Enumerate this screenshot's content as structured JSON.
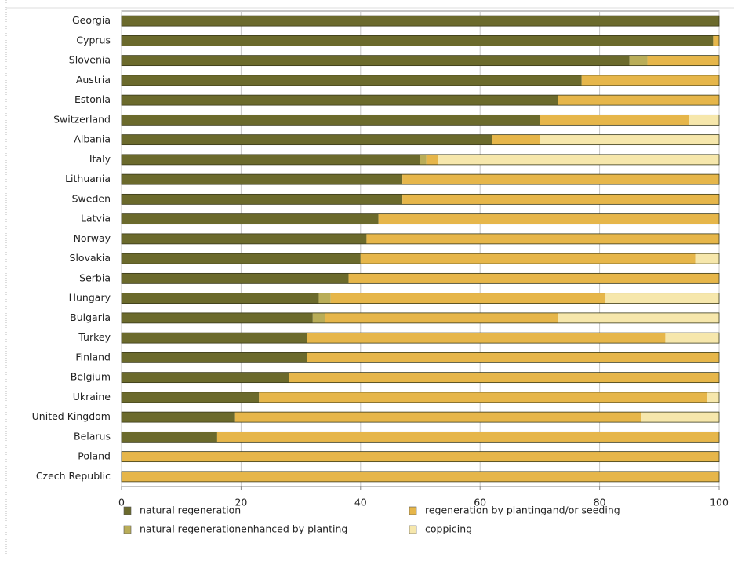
{
  "chart_data": {
    "type": "stacked-bar-horizontal",
    "categories": [
      "Georgia",
      "Cyprus",
      "Slovenia",
      "Austria",
      "Estonia",
      "Switzerland",
      "Albania",
      "Italy",
      "Lithuania",
      "Sweden",
      "Latvia",
      "Norway",
      "Slovakia",
      "Serbia",
      "Hungary",
      "Bulgaria",
      "Turkey",
      "Finland",
      "Belgium",
      "Ukraine",
      "United Kingdom",
      "Belarus",
      "Poland",
      "Czech Republic"
    ],
    "series": [
      {
        "name": "natural regeneration",
        "color": "#6b6a2c",
        "values": [
          100,
          99,
          85,
          77,
          73,
          70,
          62,
          50,
          47,
          47,
          43,
          41,
          40,
          38,
          33,
          32,
          31,
          31,
          28,
          23,
          19,
          16,
          0,
          0
        ]
      },
      {
        "name": "natural regenerationenhanced by planting",
        "color": "#b9ad58",
        "values": [
          0,
          0,
          3,
          0,
          0,
          0,
          0,
          1,
          0,
          0,
          0,
          0,
          0,
          0,
          2,
          2,
          0,
          0,
          0,
          0,
          0,
          0,
          0,
          0
        ]
      },
      {
        "name": "regeneration by plantingand/or seeding",
        "color": "#e6b64a",
        "values": [
          0,
          1,
          12,
          23,
          27,
          25,
          8,
          2,
          53,
          53,
          57,
          59,
          56,
          62,
          46,
          39,
          60,
          69,
          72,
          75,
          68,
          84,
          100,
          100
        ]
      },
      {
        "name": "coppicing",
        "color": "#f6e7ac",
        "values": [
          0,
          0,
          0,
          0,
          0,
          5,
          30,
          47,
          0,
          0,
          0,
          0,
          4,
          0,
          19,
          27,
          9,
          0,
          0,
          2,
          13,
          0,
          0,
          0
        ]
      }
    ],
    "xlim": [
      0,
      100
    ],
    "xticks": [
      0,
      20,
      40,
      60,
      80,
      100
    ],
    "grid": true
  }
}
